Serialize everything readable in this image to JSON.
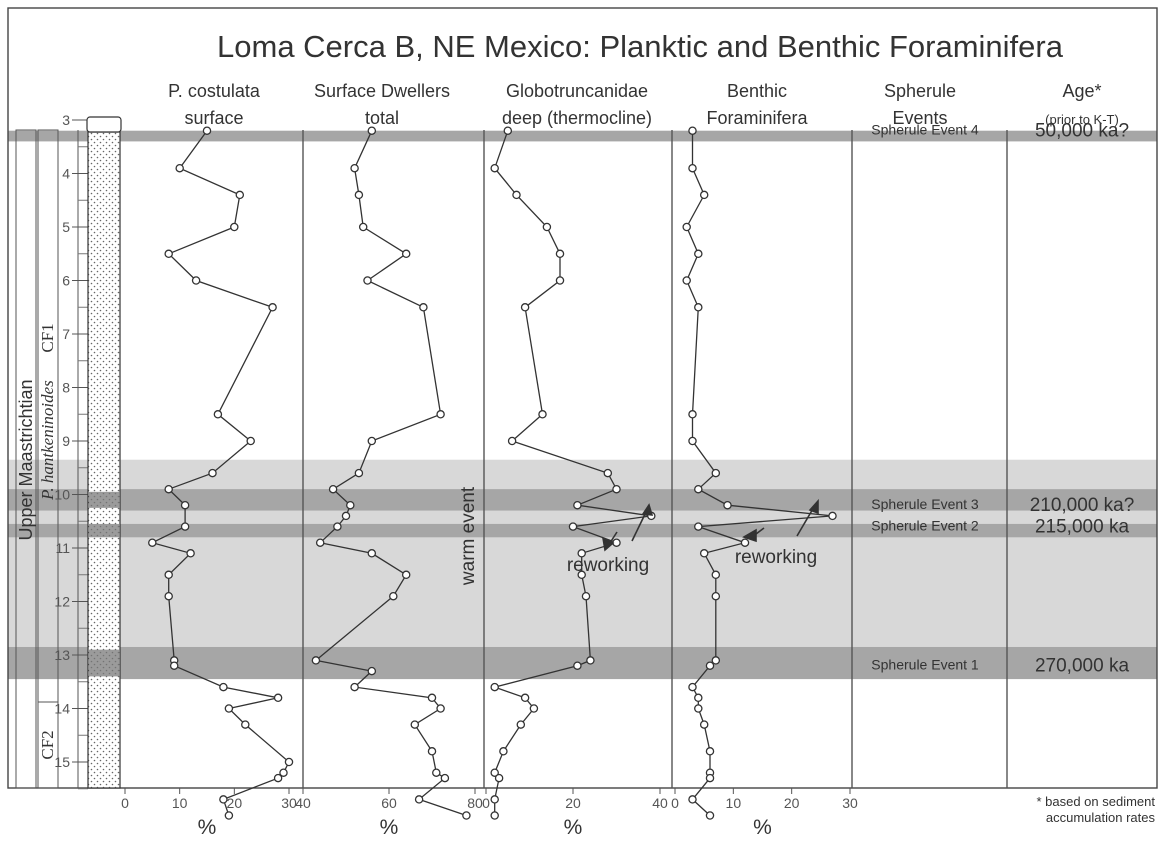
{
  "chart_data": {
    "type": "line",
    "title": "Loma Cerca B, NE Mexico:  Planktic and Benthic Foraminifera",
    "ylabel_axis": "depth",
    "ylim": [
      3,
      16
    ],
    "yticks": [
      3,
      4,
      5,
      6,
      7,
      8,
      9,
      10,
      11,
      12,
      13,
      14,
      15
    ],
    "stratigraphy": {
      "stage": "Upper Maastrichtian",
      "zone_name": "P. hantkeninoides",
      "zone_code": "CF1",
      "zone_lower": "CF2"
    },
    "columns": [
      {
        "id": "pcost",
        "header_line1": "P. costulata",
        "header_line2": "surface",
        "unit": "%",
        "xlim": [
          0,
          30
        ],
        "xticks": [
          "0",
          "10",
          "20",
          "30"
        ],
        "points": [
          [
            15,
            3.2
          ],
          [
            10,
            3.9
          ],
          [
            21,
            4.4
          ],
          [
            20,
            5.0
          ],
          [
            8,
            5.5
          ],
          [
            13,
            6.0
          ],
          [
            27,
            6.5
          ],
          [
            17,
            8.5
          ],
          [
            23,
            9.0
          ],
          [
            16,
            9.6
          ],
          [
            8,
            9.9
          ],
          [
            11,
            10.2
          ],
          [
            11,
            10.6
          ],
          [
            5,
            10.9
          ],
          [
            12,
            11.1
          ],
          [
            8,
            11.5
          ],
          [
            8,
            11.9
          ],
          [
            9,
            13.1
          ],
          [
            9,
            13.2
          ],
          [
            18,
            13.6
          ],
          [
            28,
            13.8
          ],
          [
            19,
            14.0
          ],
          [
            22,
            14.3
          ],
          [
            30,
            15.0
          ],
          [
            29,
            15.2
          ],
          [
            28,
            15.3
          ],
          [
            18,
            15.7
          ],
          [
            19,
            16.0
          ]
        ]
      },
      {
        "id": "surf",
        "header_line1": "Surface Dwellers",
        "header_line2": "total",
        "unit": "%",
        "xlim": [
          40,
          80
        ],
        "xticks": [
          "40",
          "60",
          "80"
        ],
        "points": [
          [
            56,
            3.2
          ],
          [
            52,
            3.9
          ],
          [
            53,
            4.4
          ],
          [
            54,
            5.0
          ],
          [
            64,
            5.5
          ],
          [
            55,
            6.0
          ],
          [
            68,
            6.5
          ],
          [
            72,
            8.5
          ],
          [
            56,
            9.0
          ],
          [
            53,
            9.6
          ],
          [
            47,
            9.9
          ],
          [
            51,
            10.2
          ],
          [
            50,
            10.4
          ],
          [
            48,
            10.6
          ],
          [
            44,
            10.9
          ],
          [
            56,
            11.1
          ],
          [
            64,
            11.5
          ],
          [
            61,
            11.9
          ],
          [
            43,
            13.1
          ],
          [
            56,
            13.3
          ],
          [
            52,
            13.6
          ],
          [
            70,
            13.8
          ],
          [
            72,
            14.0
          ],
          [
            66,
            14.3
          ],
          [
            70,
            14.8
          ],
          [
            71,
            15.2
          ],
          [
            73,
            15.3
          ],
          [
            67,
            15.7
          ],
          [
            78,
            16.0
          ]
        ]
      },
      {
        "id": "glob",
        "header_line1": "Globotruncanidae",
        "header_line2": "deep (thermocline)",
        "unit": "%",
        "xlim": [
          0,
          40
        ],
        "xticks": [
          "0",
          "20",
          "40"
        ],
        "points": [
          [
            5,
            3.2
          ],
          [
            2,
            3.9
          ],
          [
            7,
            4.4
          ],
          [
            14,
            5.0
          ],
          [
            17,
            5.5
          ],
          [
            17,
            6.0
          ],
          [
            9,
            6.5
          ],
          [
            13,
            8.5
          ],
          [
            6,
            9.0
          ],
          [
            28,
            9.6
          ],
          [
            30,
            9.9
          ],
          [
            21,
            10.2
          ],
          [
            38,
            10.4
          ],
          [
            20,
            10.6
          ],
          [
            30,
            10.9
          ],
          [
            22,
            11.1
          ],
          [
            22,
            11.5
          ],
          [
            23,
            11.9
          ],
          [
            24,
            13.1
          ],
          [
            21,
            13.2
          ],
          [
            2,
            13.6
          ],
          [
            9,
            13.8
          ],
          [
            11,
            14.0
          ],
          [
            8,
            14.3
          ],
          [
            4,
            14.8
          ],
          [
            2,
            15.2
          ],
          [
            3,
            15.3
          ],
          [
            2,
            15.7
          ],
          [
            2,
            16.0
          ]
        ]
      },
      {
        "id": "benth",
        "header_line1": "Benthic",
        "header_line2": "Foraminifera",
        "unit": "%",
        "xlim": [
          0,
          30
        ],
        "xticks": [
          "0",
          "10",
          "20",
          "30"
        ],
        "points": [
          [
            3,
            3.2
          ],
          [
            3,
            3.9
          ],
          [
            5,
            4.4
          ],
          [
            2,
            5.0
          ],
          [
            4,
            5.5
          ],
          [
            2,
            6.0
          ],
          [
            4,
            6.5
          ],
          [
            3,
            8.5
          ],
          [
            3,
            9.0
          ],
          [
            7,
            9.6
          ],
          [
            4,
            9.9
          ],
          [
            9,
            10.2
          ],
          [
            27,
            10.4
          ],
          [
            4,
            10.6
          ],
          [
            12,
            10.9
          ],
          [
            5,
            11.1
          ],
          [
            7,
            11.5
          ],
          [
            7,
            11.9
          ],
          [
            7,
            13.1
          ],
          [
            6,
            13.2
          ],
          [
            3,
            13.6
          ],
          [
            4,
            13.8
          ],
          [
            4,
            14.0
          ],
          [
            5,
            14.3
          ],
          [
            6,
            14.8
          ],
          [
            6,
            15.2
          ],
          [
            6,
            15.3
          ],
          [
            3,
            15.7
          ],
          [
            6,
            16.0
          ]
        ]
      }
    ],
    "events_header": [
      "Spherule",
      "Events"
    ],
    "age_header": [
      "Age*",
      "(prior to K-T)"
    ],
    "events": [
      {
        "label": "Spherule Event 4",
        "age": "50,000 ka?",
        "depth": 3.2
      },
      {
        "label": "Spherule Event 3",
        "age": "210,000 ka?",
        "depth": 10.2
      },
      {
        "label": "Spherule Event 2",
        "age": "215,000 ka",
        "depth": 10.6
      },
      {
        "label": "Spherule Event 1",
        "age": "270,000 ka",
        "depth": 13.2
      }
    ],
    "annotations": {
      "warm_event": "warm event",
      "reworking": "reworking",
      "footnote": [
        "* based on sediment",
        "accumulation rates"
      ]
    },
    "colors": {
      "light_band": "#d8d8d8",
      "dark_band": "#a6a6a6",
      "line": "#333333"
    }
  }
}
